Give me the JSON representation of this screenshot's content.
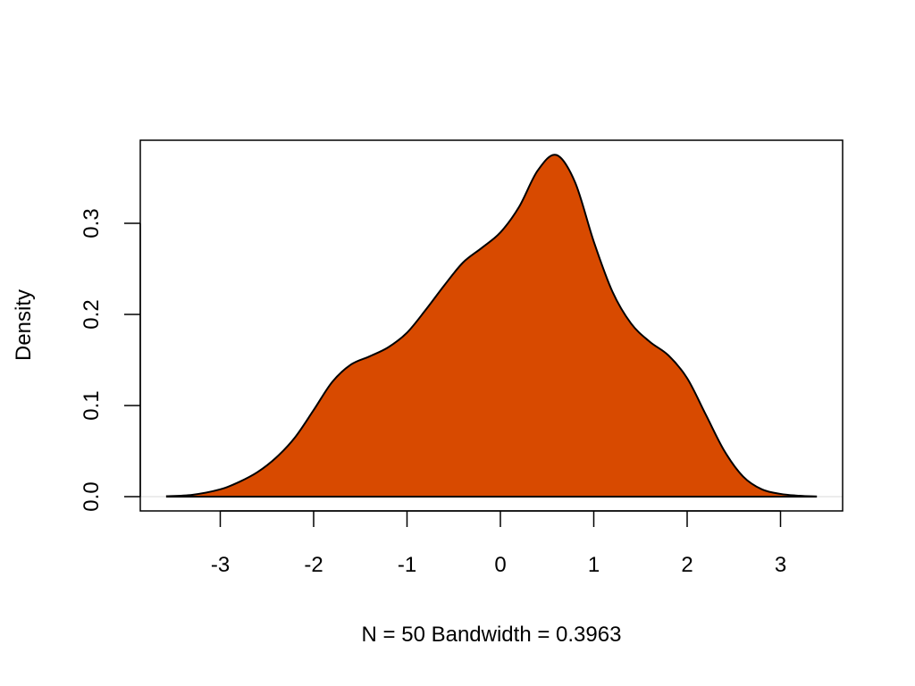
{
  "chart_data": {
    "type": "area",
    "title": "",
    "xlabel": "N = 50   Bandwidth = 0.3963",
    "ylabel": "Density",
    "fill_color": "#D84A00",
    "line_color": "#000000",
    "xlim": [
      -3.75,
      3.78
    ],
    "ylim": [
      -0.015,
      0.39
    ],
    "grid": false,
    "legend": null,
    "x_ticks": [
      -3,
      -2,
      -1,
      0,
      1,
      2,
      3
    ],
    "x_tick_labels": [
      "-3",
      "-2",
      "-1",
      "0",
      "1",
      "2",
      "3"
    ],
    "y_ticks": [
      0.0,
      0.1,
      0.2,
      0.3
    ],
    "y_tick_labels": [
      "0.0",
      "0.1",
      "0.2",
      "0.3"
    ],
    "n": 50,
    "bandwidth": 0.3963,
    "x": [
      -3.58,
      -3.3,
      -3.0,
      -2.8,
      -2.6,
      -2.4,
      -2.2,
      -2.0,
      -1.8,
      -1.6,
      -1.4,
      -1.2,
      -1.0,
      -0.8,
      -0.6,
      -0.4,
      -0.2,
      0.0,
      0.2,
      0.4,
      0.6,
      0.8,
      1.0,
      1.2,
      1.4,
      1.6,
      1.8,
      2.0,
      2.2,
      2.4,
      2.6,
      2.8,
      3.0,
      3.2,
      3.38
    ],
    "y": [
      0.0005,
      0.002,
      0.008,
      0.016,
      0.027,
      0.043,
      0.065,
      0.095,
      0.126,
      0.145,
      0.154,
      0.164,
      0.18,
      0.205,
      0.232,
      0.257,
      0.273,
      0.29,
      0.318,
      0.358,
      0.375,
      0.345,
      0.28,
      0.225,
      0.19,
      0.17,
      0.155,
      0.13,
      0.09,
      0.05,
      0.022,
      0.008,
      0.003,
      0.001,
      0.0003
    ]
  }
}
